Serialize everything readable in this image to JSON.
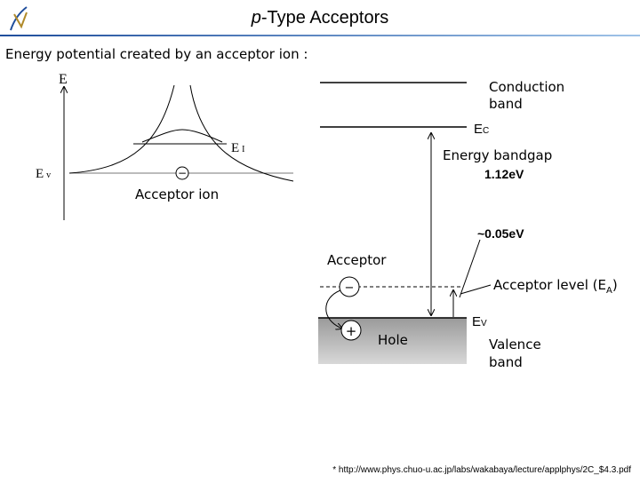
{
  "header": {
    "title_italic": "p",
    "title_rest": "-Type Acceptors"
  },
  "subtitle": "Energy potential created by an acceptor ion :",
  "left_diagram": {
    "axis_label": "E",
    "ev": {
      "main": "E",
      "sub": "v"
    },
    "ei": {
      "main": "E",
      "sub": "I"
    },
    "ion_sign": "−",
    "caption": "Acceptor ion"
  },
  "right_diagram": {
    "conduction_band": [
      "Conduction",
      "band"
    ],
    "ec": {
      "main": "E",
      "sub": "C"
    },
    "bandgap_label": "Energy bandgap",
    "bandgap_value": "1.12eV",
    "acceptor_energy": "~0.05eV",
    "acceptor_label": "Acceptor",
    "acceptor_level": {
      "text": "Acceptor level (E",
      "sub": "A",
      "close": ")"
    },
    "acceptor_sign": "−",
    "ev": {
      "main": "E",
      "sub": "V"
    },
    "hole_sign": "+",
    "hole_label": "Hole",
    "valence_band": [
      "Valence",
      "band"
    ]
  },
  "footnote": "* http://www.phys.chuo-u.ac.jp/labs/wakabaya/lecture/applphys/2C_$4.3.pdf"
}
